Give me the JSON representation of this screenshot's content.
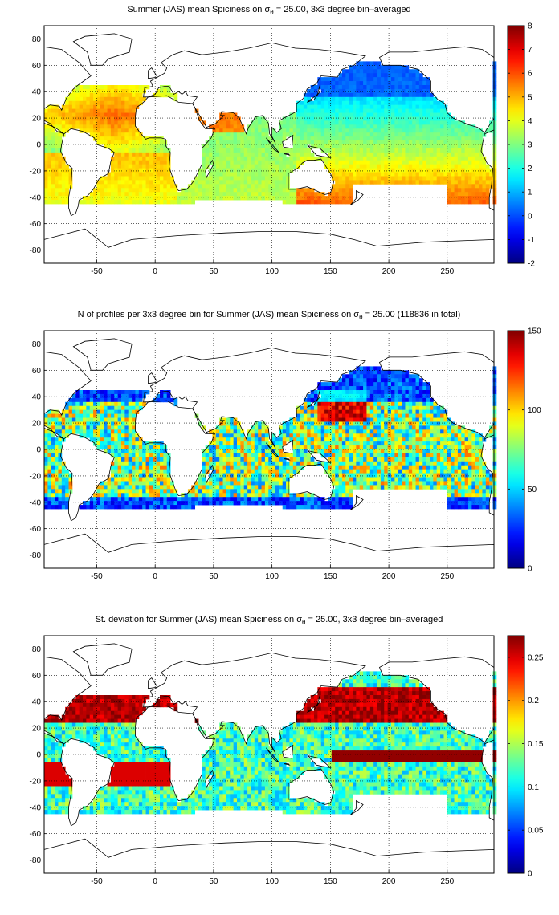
{
  "panels": [
    {
      "title_prefix": "Summer (JAS) mean Spiciness on σ",
      "title_sub": "θ",
      "title_suffix": " = 25.00, 3x3 degree bin–averaged",
      "x_ticks": [
        "-50",
        "0",
        "50",
        "100",
        "150",
        "200",
        "250"
      ],
      "y_ticks": [
        "80",
        "60",
        "40",
        "20",
        "0",
        "-20",
        "-40",
        "-60",
        "-80"
      ],
      "colorbar_ticks": [
        "8",
        "7",
        "6",
        "5",
        "4",
        "3",
        "2",
        "1",
        "0",
        "-1",
        "-2"
      ],
      "colorbar_range": [
        -2,
        8
      ],
      "colormap": "jet"
    },
    {
      "title_prefix": "N of profiles per 3x3 degree bin for Summer (JAS) mean Spiciness on σ",
      "title_sub": "θ",
      "title_suffix": " = 25.00 (118836 in total)",
      "x_ticks": [
        "-50",
        "0",
        "50",
        "100",
        "150",
        "200",
        "250"
      ],
      "y_ticks": [
        "80",
        "60",
        "40",
        "20",
        "0",
        "-20",
        "-40",
        "-60",
        "-80"
      ],
      "colorbar_ticks": [
        "150",
        "100",
        "50",
        "0"
      ],
      "colorbar_range": [
        0,
        150
      ],
      "colormap": "jet"
    },
    {
      "title_prefix": "St. deviation for Summer (JAS) mean Spiciness on σ",
      "title_sub": "θ",
      "title_suffix": " = 25.00, 3x3 degree bin–averaged",
      "x_ticks": [
        "-50",
        "0",
        "50",
        "100",
        "150",
        "200",
        "250"
      ],
      "y_ticks": [
        "80",
        "60",
        "40",
        "20",
        "0",
        "-20",
        "-40",
        "-60",
        "-80"
      ],
      "colorbar_ticks": [
        "0.25",
        "0.2",
        "0.15",
        "0.1",
        "0.05",
        "0"
      ],
      "colorbar_range": [
        0,
        0.275
      ],
      "colormap": "jet"
    }
  ]
}
